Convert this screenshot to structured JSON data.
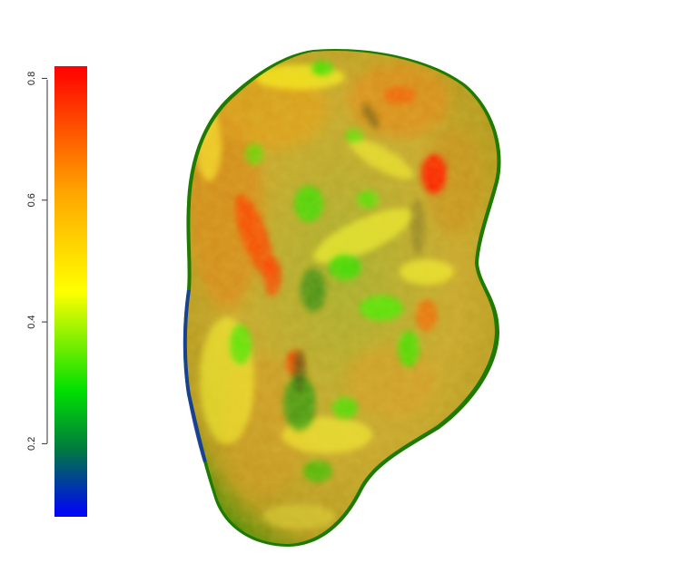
{
  "colorbar": {
    "ticks": [
      {
        "value": 0.2,
        "label": "0.2"
      },
      {
        "value": 0.4,
        "label": "0.4"
      },
      {
        "value": 0.6,
        "label": "0.6"
      },
      {
        "value": 0.8,
        "label": "0.8"
      }
    ],
    "range": [
      0.08,
      0.82
    ],
    "gradient_colors": [
      "#0000ff",
      "#008000",
      "#00ff00",
      "#ffff00",
      "#ffa500",
      "#ff0000"
    ]
  },
  "surface": {
    "description_colors": {
      "base": "#b8a232",
      "rim": "#2e8b00",
      "edge_blue": "#1030a0",
      "hot": "#ff2a00",
      "warm": "#e89a10",
      "highlight": "#ffff00",
      "cool": "#33e000"
    }
  }
}
